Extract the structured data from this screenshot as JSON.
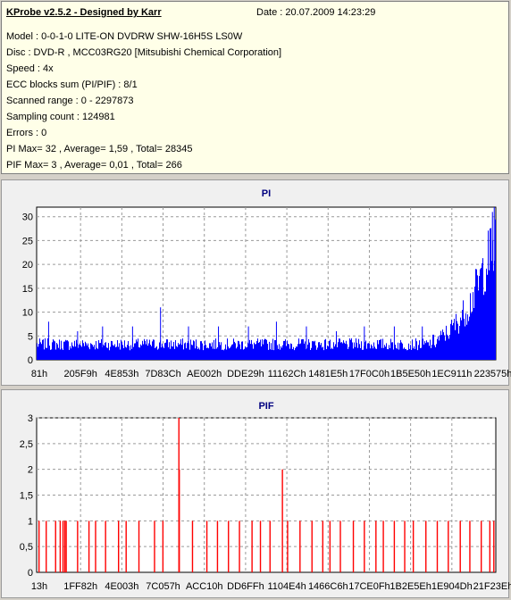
{
  "header": {
    "title": "KProbe v2.5.2 - Designed by Karr",
    "date": "Date : 20.07.2009 14:23:29",
    "lines": [
      "Model : 0-0-1-0 LITE-ON DVDRW SHW-16H5S  LS0W",
      "Disc : DVD-R , MCC03RG20 [Mitsubishi Chemical Corporation]",
      "Speed : 4x",
      "ECC blocks sum (PI/PIF) : 8/1",
      "Scanned range : 0 - 2297873",
      "Sampling count : 124981",
      "Errors : 0",
      "PI Max= 32 , Average= 1,59 , Total= 28345",
      "PIF Max= 3 , Average= 0,01 , Total= 266"
    ]
  },
  "colors": {
    "pi_bar": "#0000ff",
    "pif_bar": "#ff0000",
    "panel_bg": "#f0f0f0",
    "header_bg": "#ffffe8"
  },
  "chart_data": [
    {
      "type": "bar",
      "title": "PI",
      "xlim": [
        0,
        2297873
      ],
      "ylim": [
        0,
        32
      ],
      "y_ticks": [
        "0",
        "5",
        "10",
        "15",
        "20",
        "25",
        "30"
      ],
      "y_tick_values": [
        0,
        5,
        10,
        15,
        20,
        25,
        30
      ],
      "x_tick_labels": [
        "81h",
        "205F9h",
        "4E853h",
        "7D83Ch",
        "AE002h",
        "DDE29h",
        "11162Ch",
        "1481E5h",
        "17F0C0h",
        "1B5E50h",
        "1EC911h",
        "223575h"
      ],
      "grid": true,
      "series": [
        {
          "baseline": [
            [
              0,
              3
            ],
            [
              300000,
              3
            ],
            [
              900000,
              3
            ],
            [
              1600000,
              3
            ],
            [
              1850000,
              3
            ],
            [
              1960000,
              3
            ],
            [
              2010000,
              5
            ],
            [
              2060000,
              7
            ],
            [
              2110000,
              10
            ],
            [
              2160000,
              14
            ],
            [
              2210000,
              20
            ],
            [
              2240000,
              25
            ],
            [
              2270000,
              28
            ],
            [
              2297873,
              30
            ]
          ],
          "spikes": [
            [
              60000,
              8
            ],
            [
              205000,
              6
            ],
            [
              330000,
              7
            ],
            [
              480000,
              7
            ],
            [
              620000,
              11
            ],
            [
              760000,
              7
            ],
            [
              910000,
              7
            ],
            [
              1060000,
              7
            ],
            [
              1200000,
              8
            ],
            [
              1350000,
              7
            ],
            [
              1500000,
              6
            ],
            [
              1640000,
              7
            ],
            [
              1790000,
              7
            ],
            [
              1930000,
              7
            ],
            [
              2281000,
              31
            ],
            [
              2290000,
              32
            ]
          ]
        }
      ]
    },
    {
      "type": "bar",
      "title": "PIF",
      "xlim": [
        0,
        2297873
      ],
      "ylim": [
        0,
        3
      ],
      "y_ticks": [
        "0",
        "0,5",
        "1",
        "1,5",
        "2",
        "2,5",
        "3"
      ],
      "y_tick_values": [
        0,
        0.5,
        1,
        1.5,
        2,
        2.5,
        3
      ],
      "x_tick_labels": [
        "13h",
        "1FF82h",
        "4E003h",
        "7C057h",
        "ACC10h",
        "DD6FFh",
        "1104E4h",
        "1466C6h",
        "17CE0Fh",
        "1B2E5Eh",
        "1E904Dh",
        "21F23Eh"
      ],
      "grid": true,
      "series": [
        {
          "bars": [
            [
              12000,
              1
            ],
            [
              48000,
              1
            ],
            [
              95000,
              1
            ],
            [
              118000,
              1
            ],
            [
              132000,
              1
            ],
            [
              141000,
              1
            ],
            [
              148000,
              1
            ],
            [
              205000,
              1
            ],
            [
              262000,
              1
            ],
            [
              295000,
              1
            ],
            [
              345000,
              1
            ],
            [
              410000,
              1
            ],
            [
              448000,
              1
            ],
            [
              512000,
              1
            ],
            [
              590000,
              1
            ],
            [
              632000,
              1
            ],
            [
              712000,
              3
            ],
            [
              714000,
              2
            ],
            [
              780000,
              1
            ],
            [
              852000,
              1
            ],
            [
              905000,
              1
            ],
            [
              960000,
              1
            ],
            [
              1015000,
              1
            ],
            [
              1078000,
              1
            ],
            [
              1120000,
              1
            ],
            [
              1168000,
              1
            ],
            [
              1230000,
              2
            ],
            [
              1256000,
              1
            ],
            [
              1318000,
              1
            ],
            [
              1378000,
              1
            ],
            [
              1432000,
              1
            ],
            [
              1468000,
              1
            ],
            [
              1520000,
              1
            ],
            [
              1585000,
              1
            ],
            [
              1640000,
              1
            ],
            [
              1698000,
              1
            ],
            [
              1735000,
              1
            ],
            [
              1790000,
              1
            ],
            [
              1842000,
              1
            ],
            [
              1885000,
              1
            ],
            [
              1948000,
              1
            ],
            [
              2005000,
              1
            ],
            [
              2060000,
              1
            ],
            [
              2120000,
              1
            ],
            [
              2168000,
              1
            ],
            [
              2225000,
              1
            ],
            [
              2268000,
              1
            ],
            [
              2288000,
              1
            ]
          ]
        }
      ]
    }
  ]
}
